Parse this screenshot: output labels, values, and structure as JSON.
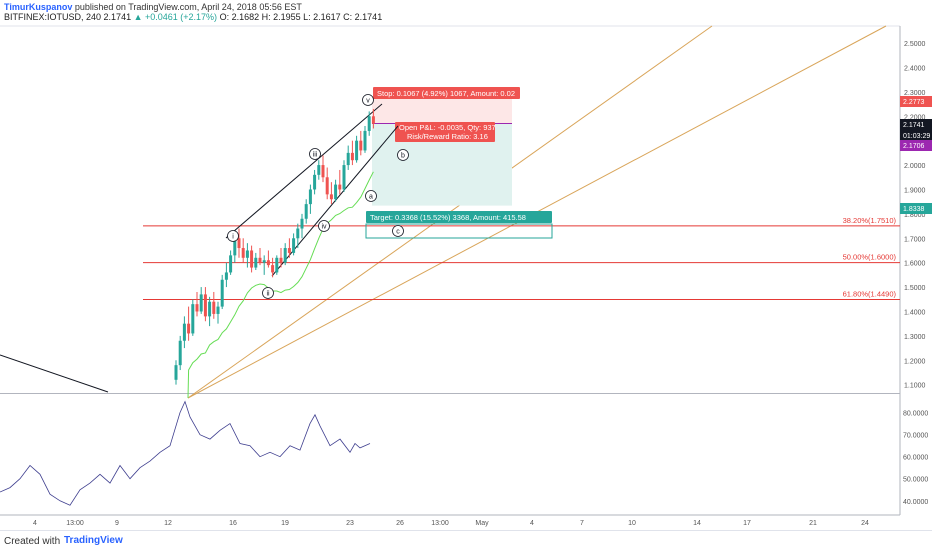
{
  "header": {
    "author": "TimurKuspanov",
    "published_text": "published on TradingView.com, April 24, 2018 05:56 EST",
    "symbol_line": "BITFINEX:IOTUSD, 240",
    "last": "2.1741",
    "change": "▲ +0.0461 (+2.17%)",
    "ohlc": "O: 2.1682  H: 2.1955  L: 2.1617  C: 2.1741"
  },
  "price_axis": {
    "ticks": [
      "2.5000",
      "2.4000",
      "2.3000",
      "2.2000",
      "2.1000",
      "2.0000",
      "1.9000",
      "1.8000",
      "1.7000",
      "1.6000",
      "1.5000",
      "1.4000",
      "1.3000",
      "1.2000",
      "1.1000"
    ],
    "tags": [
      {
        "label": "2.2773",
        "color": "#ef5350"
      },
      {
        "label": "2.1741",
        "color": "#131722"
      },
      {
        "label": "01:03:29",
        "color": "#131722"
      },
      {
        "label": "2.1706",
        "color": "#9c27b0"
      },
      {
        "label": "1.8338",
        "color": "#26a69a"
      }
    ]
  },
  "osc_axis": {
    "ticks": [
      "80.0000",
      "70.0000",
      "60.0000",
      "50.0000",
      "40.0000"
    ]
  },
  "time_axis": {
    "ticks": [
      "4",
      "13:00",
      "9",
      "12",
      "16",
      "19",
      "23",
      "26",
      "13:00",
      "May",
      "4",
      "7",
      "10",
      "14",
      "17",
      "21",
      "24"
    ]
  },
  "fib_levels": [
    {
      "label": "38.20%(1.7510)",
      "price": 1.751
    },
    {
      "label": "50.00%(1.6000)",
      "price": 1.6
    },
    {
      "label": "61.80%(1.4490)",
      "price": 1.449
    }
  ],
  "wave_labels": [
    "i",
    "ii",
    "iii",
    "iv",
    "v",
    "a",
    "b",
    "c"
  ],
  "position": {
    "stop_label": "Stop: 0.1067 (4.92%) 1067, Amount: 0.02",
    "pnl_label": "Open P&L: -0.0035, Qty: 937",
    "rr_label": "Risk/Reward Ratio: 3.16",
    "target_label": "Target: 0.3368 (15.52%) 3368, Amount: 415.58",
    "entry": 2.1706,
    "stop": 2.2773,
    "target": 1.8338
  },
  "colors": {
    "up": "#26a69a",
    "down": "#ef5350",
    "ma": "#66dd55",
    "fib": "#e53935",
    "fan": "#d9a55a",
    "osc": "#3f3f8f",
    "stop_fill": "#fde7e7",
    "target_fill": "#e0f2ef"
  },
  "chart_data": {
    "type": "candlestick",
    "x_unit": "4h bars, Apr 2018",
    "candles": [
      {
        "o": 1.12,
        "h": 1.2,
        "l": 1.1,
        "c": 1.18
      },
      {
        "o": 1.18,
        "h": 1.3,
        "l": 1.16,
        "c": 1.28
      },
      {
        "o": 1.28,
        "h": 1.38,
        "l": 1.25,
        "c": 1.35
      },
      {
        "o": 1.35,
        "h": 1.42,
        "l": 1.28,
        "c": 1.31
      },
      {
        "o": 1.31,
        "h": 1.45,
        "l": 1.3,
        "c": 1.43
      },
      {
        "o": 1.43,
        "h": 1.48,
        "l": 1.38,
        "c": 1.4
      },
      {
        "o": 1.4,
        "h": 1.5,
        "l": 1.39,
        "c": 1.47
      },
      {
        "o": 1.47,
        "h": 1.5,
        "l": 1.36,
        "c": 1.38
      },
      {
        "o": 1.38,
        "h": 1.46,
        "l": 1.34,
        "c": 1.44
      },
      {
        "o": 1.44,
        "h": 1.48,
        "l": 1.37,
        "c": 1.39
      },
      {
        "o": 1.39,
        "h": 1.44,
        "l": 1.35,
        "c": 1.42
      },
      {
        "o": 1.42,
        "h": 1.55,
        "l": 1.41,
        "c": 1.53
      },
      {
        "o": 1.53,
        "h": 1.6,
        "l": 1.5,
        "c": 1.56
      },
      {
        "o": 1.56,
        "h": 1.65,
        "l": 1.55,
        "c": 1.63
      },
      {
        "o": 1.63,
        "h": 1.72,
        "l": 1.6,
        "c": 1.7
      },
      {
        "o": 1.7,
        "h": 1.74,
        "l": 1.62,
        "c": 1.66
      },
      {
        "o": 1.66,
        "h": 1.7,
        "l": 1.6,
        "c": 1.62
      },
      {
        "o": 1.62,
        "h": 1.68,
        "l": 1.58,
        "c": 1.65
      },
      {
        "o": 1.65,
        "h": 1.67,
        "l": 1.56,
        "c": 1.58
      },
      {
        "o": 1.58,
        "h": 1.64,
        "l": 1.57,
        "c": 1.62
      },
      {
        "o": 1.62,
        "h": 1.66,
        "l": 1.59,
        "c": 1.6
      },
      {
        "o": 1.6,
        "h": 1.63,
        "l": 1.55,
        "c": 1.61
      },
      {
        "o": 1.61,
        "h": 1.65,
        "l": 1.58,
        "c": 1.59
      },
      {
        "o": 1.59,
        "h": 1.62,
        "l": 1.54,
        "c": 1.56
      },
      {
        "o": 1.56,
        "h": 1.63,
        "l": 1.55,
        "c": 1.62
      },
      {
        "o": 1.62,
        "h": 1.66,
        "l": 1.58,
        "c": 1.6
      },
      {
        "o": 1.6,
        "h": 1.68,
        "l": 1.59,
        "c": 1.66
      },
      {
        "o": 1.66,
        "h": 1.7,
        "l": 1.62,
        "c": 1.64
      },
      {
        "o": 1.64,
        "h": 1.72,
        "l": 1.63,
        "c": 1.7
      },
      {
        "o": 1.7,
        "h": 1.76,
        "l": 1.66,
        "c": 1.74
      },
      {
        "o": 1.74,
        "h": 1.8,
        "l": 1.7,
        "c": 1.78
      },
      {
        "o": 1.78,
        "h": 1.86,
        "l": 1.76,
        "c": 1.84
      },
      {
        "o": 1.84,
        "h": 1.92,
        "l": 1.8,
        "c": 1.9
      },
      {
        "o": 1.9,
        "h": 1.98,
        "l": 1.88,
        "c": 1.96
      },
      {
        "o": 1.96,
        "h": 2.02,
        "l": 1.94,
        "c": 2.0
      },
      {
        "o": 2.0,
        "h": 2.04,
        "l": 1.93,
        "c": 1.95
      },
      {
        "o": 1.95,
        "h": 1.99,
        "l": 1.86,
        "c": 1.88
      },
      {
        "o": 1.88,
        "h": 1.93,
        "l": 1.84,
        "c": 1.86
      },
      {
        "o": 1.86,
        "h": 1.94,
        "l": 1.85,
        "c": 1.92
      },
      {
        "o": 1.92,
        "h": 1.98,
        "l": 1.88,
        "c": 1.9
      },
      {
        "o": 1.9,
        "h": 2.02,
        "l": 1.89,
        "c": 2.0
      },
      {
        "o": 2.0,
        "h": 2.08,
        "l": 1.98,
        "c": 2.05
      },
      {
        "o": 2.05,
        "h": 2.1,
        "l": 2.0,
        "c": 2.02
      },
      {
        "o": 2.02,
        "h": 2.12,
        "l": 2.01,
        "c": 2.1
      },
      {
        "o": 2.1,
        "h": 2.14,
        "l": 2.04,
        "c": 2.06
      },
      {
        "o": 2.06,
        "h": 2.16,
        "l": 2.05,
        "c": 2.14
      },
      {
        "o": 2.14,
        "h": 2.22,
        "l": 2.12,
        "c": 2.2
      },
      {
        "o": 2.2,
        "h": 2.23,
        "l": 2.15,
        "c": 2.17
      }
    ],
    "oscillator": [
      {
        "x": 0,
        "y": 44
      },
      {
        "x": 10,
        "y": 46
      },
      {
        "x": 20,
        "y": 50
      },
      {
        "x": 30,
        "y": 56
      },
      {
        "x": 40,
        "y": 52
      },
      {
        "x": 50,
        "y": 43
      },
      {
        "x": 60,
        "y": 40
      },
      {
        "x": 70,
        "y": 38
      },
      {
        "x": 80,
        "y": 45
      },
      {
        "x": 90,
        "y": 48
      },
      {
        "x": 100,
        "y": 52
      },
      {
        "x": 110,
        "y": 48
      },
      {
        "x": 120,
        "y": 56
      },
      {
        "x": 130,
        "y": 50
      },
      {
        "x": 140,
        "y": 55
      },
      {
        "x": 150,
        "y": 58
      },
      {
        "x": 160,
        "y": 62
      },
      {
        "x": 170,
        "y": 65
      },
      {
        "x": 180,
        "y": 80
      },
      {
        "x": 185,
        "y": 85
      },
      {
        "x": 190,
        "y": 78
      },
      {
        "x": 200,
        "y": 70
      },
      {
        "x": 210,
        "y": 68
      },
      {
        "x": 220,
        "y": 72
      },
      {
        "x": 230,
        "y": 75
      },
      {
        "x": 240,
        "y": 66
      },
      {
        "x": 250,
        "y": 65
      },
      {
        "x": 260,
        "y": 60
      },
      {
        "x": 270,
        "y": 62
      },
      {
        "x": 280,
        "y": 60
      },
      {
        "x": 290,
        "y": 65
      },
      {
        "x": 300,
        "y": 63
      },
      {
        "x": 310,
        "y": 75
      },
      {
        "x": 315,
        "y": 79
      },
      {
        "x": 320,
        "y": 74
      },
      {
        "x": 330,
        "y": 65
      },
      {
        "x": 340,
        "y": 68
      },
      {
        "x": 350,
        "y": 62
      },
      {
        "x": 355,
        "y": 66
      },
      {
        "x": 360,
        "y": 64
      },
      {
        "x": 370,
        "y": 66
      }
    ],
    "osc_ylim": [
      34,
      88
    ],
    "price_ylim": [
      1.07,
      2.57
    ]
  }
}
